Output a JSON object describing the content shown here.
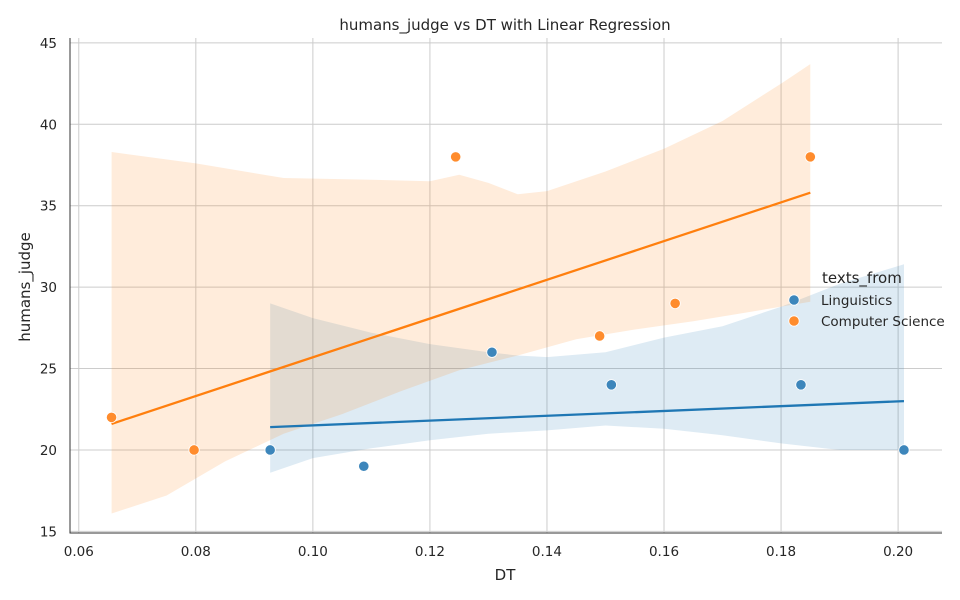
{
  "chart_data": {
    "type": "scatter",
    "title": "humans_judge vs DT with Linear Regression",
    "xlabel": "DT",
    "ylabel": "humans_judge",
    "xlim": [
      0.0585,
      0.2075
    ],
    "ylim": [
      14.9,
      45.3
    ],
    "xticks": [
      0.06,
      0.08,
      0.1,
      0.12,
      0.14,
      0.16,
      0.18,
      0.2
    ],
    "xtick_labels": [
      "0.06",
      "0.08",
      "0.10",
      "0.12",
      "0.14",
      "0.16",
      "0.18",
      "0.20"
    ],
    "yticks": [
      15,
      20,
      25,
      30,
      35,
      40,
      45
    ],
    "ytick_labels": [
      "15",
      "20",
      "25",
      "30",
      "35",
      "40",
      "45"
    ],
    "grid": true,
    "legend": {
      "title": "texts_from",
      "placement": "right"
    },
    "series": [
      {
        "name": "Linguistics",
        "color": "#1f77b4",
        "marker_color": "#3d86bb",
        "points": [
          [
            0.0927,
            20
          ],
          [
            0.1087,
            19
          ],
          [
            0.1306,
            26
          ],
          [
            0.151,
            24
          ],
          [
            0.1834,
            24
          ],
          [
            0.201,
            20
          ]
        ],
        "regression": {
          "x0": 0.0927,
          "y0": 21.4,
          "x1": 0.201,
          "y1": 23.0
        },
        "ci_upper": [
          [
            0.0927,
            29.0
          ],
          [
            0.1,
            28.1
          ],
          [
            0.11,
            27.2
          ],
          [
            0.12,
            26.5
          ],
          [
            0.13,
            26.0
          ],
          [
            0.135,
            25.8
          ],
          [
            0.14,
            25.7
          ],
          [
            0.15,
            26.0
          ],
          [
            0.16,
            26.9
          ],
          [
            0.17,
            27.6
          ],
          [
            0.18,
            28.8
          ],
          [
            0.19,
            30.2
          ],
          [
            0.201,
            31.4
          ]
        ],
        "ci_lower": [
          [
            0.0927,
            18.6
          ],
          [
            0.1,
            19.5
          ],
          [
            0.11,
            20.1
          ],
          [
            0.12,
            20.6
          ],
          [
            0.13,
            21.0
          ],
          [
            0.14,
            21.2
          ],
          [
            0.15,
            21.5
          ],
          [
            0.16,
            21.3
          ],
          [
            0.17,
            20.9
          ],
          [
            0.18,
            20.4
          ],
          [
            0.19,
            20.0
          ],
          [
            0.201,
            20.0
          ]
        ]
      },
      {
        "name": "Computer Science",
        "color": "#ff7f0e",
        "marker_color": "#ff8c2d",
        "points": [
          [
            0.0656,
            22
          ],
          [
            0.0797,
            20
          ],
          [
            0.1244,
            38
          ],
          [
            0.149,
            27
          ],
          [
            0.1619,
            29
          ],
          [
            0.185,
            38
          ]
        ],
        "regression": {
          "x0": 0.0656,
          "y0": 21.6,
          "x1": 0.185,
          "y1": 35.8
        },
        "ci_upper": [
          [
            0.0656,
            38.3
          ],
          [
            0.08,
            37.6
          ],
          [
            0.095,
            36.7
          ],
          [
            0.11,
            36.6
          ],
          [
            0.12,
            36.5
          ],
          [
            0.125,
            36.9
          ],
          [
            0.13,
            36.4
          ],
          [
            0.135,
            35.7
          ],
          [
            0.14,
            35.9
          ],
          [
            0.15,
            37.1
          ],
          [
            0.16,
            38.5
          ],
          [
            0.17,
            40.2
          ],
          [
            0.18,
            42.5
          ],
          [
            0.185,
            43.7
          ]
        ],
        "ci_lower": [
          [
            0.0656,
            16.1
          ],
          [
            0.075,
            17.2
          ],
          [
            0.085,
            19.3
          ],
          [
            0.095,
            21.0
          ],
          [
            0.105,
            22.2
          ],
          [
            0.115,
            23.6
          ],
          [
            0.125,
            24.9
          ],
          [
            0.135,
            25.8
          ],
          [
            0.145,
            26.8
          ],
          [
            0.155,
            27.4
          ],
          [
            0.165,
            27.9
          ],
          [
            0.175,
            28.5
          ],
          [
            0.185,
            29.1
          ]
        ]
      }
    ]
  }
}
